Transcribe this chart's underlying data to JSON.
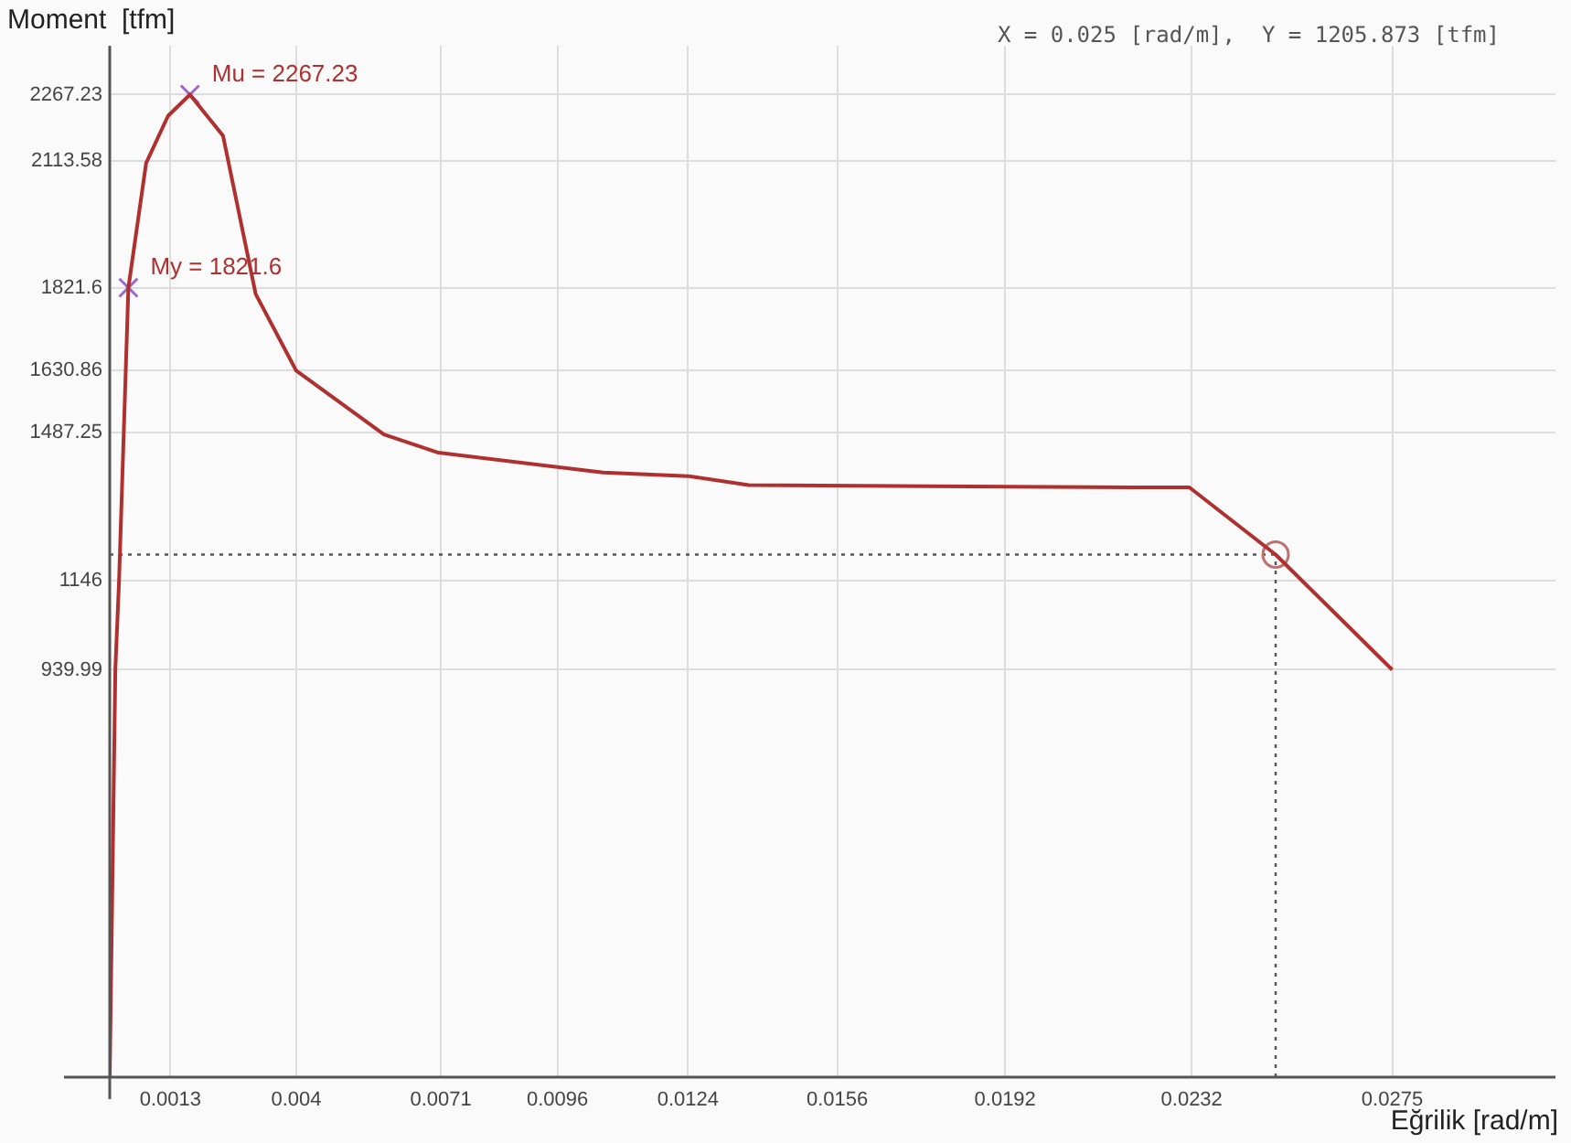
{
  "chart_data": {
    "type": "line",
    "xlabel": "Eğrilik [rad/m]",
    "ylabel": "Moment  [tfm]",
    "annotations": [
      "X = 0.025 [rad/m],  Y = 1205.873 [tfm]"
    ],
    "xlim": [
      0,
      0.031
    ],
    "ylim": [
      0,
      2380
    ],
    "xticks": [
      0.0013,
      0.004,
      0.0071,
      0.0096,
      0.0124,
      0.0156,
      0.0192,
      0.0232,
      0.0275
    ],
    "yticks": [
      939.99,
      1146,
      1487.25,
      1630.86,
      1821.6,
      2113.58,
      2267.23
    ],
    "grid": true,
    "legend": false,
    "ref_lines": [
      {
        "axis": "x",
        "value": 0.025,
        "color": "#555555",
        "line_style": "dotted"
      },
      {
        "axis": "y",
        "value": 1205.873,
        "color": "#555555",
        "line_style": "dotted"
      }
    ],
    "series": [
      {
        "color": "#b03030",
        "marker": "none",
        "x": [
          0,
          0.00012,
          0.0002,
          0.0004,
          0.00078,
          0.00125,
          0.00172,
          0.00243,
          0.00313,
          0.004,
          0.00588,
          0.00705,
          0.01058,
          0.0124,
          0.0137,
          0.0219,
          0.02315,
          0.025,
          0.0275
        ],
        "values": [
          0,
          939.99,
          1146,
          1821.6,
          2109,
          2218,
          2267.23,
          2172,
          1807,
          1630,
          1483,
          1441,
          1395,
          1387,
          1366,
          1361,
          1361,
          1205.873,
          939.99
        ]
      },
      {
        "type": "scatter",
        "color": "#9a6ad0",
        "marker": "cross",
        "x": [
          0.0004,
          0.00172
        ],
        "values": [
          1821.6,
          2267.23
        ],
        "value_labels": [
          "My = 1821.6",
          "Mu = 2267.23"
        ]
      },
      {
        "type": "scatter",
        "color": "#c07070",
        "marker": "circle",
        "x": [
          0.025
        ],
        "values": [
          1205.873
        ]
      }
    ]
  }
}
